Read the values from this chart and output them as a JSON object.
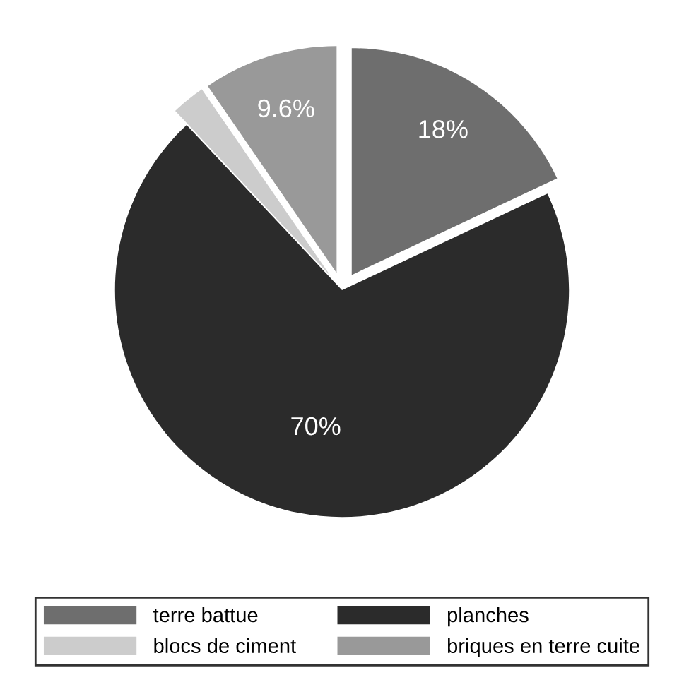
{
  "chart_data": {
    "type": "pie",
    "categories": [
      "terre battue",
      "planches",
      "blocs de ciment",
      "briques en terre cuite"
    ],
    "values": [
      18,
      70,
      2.4,
      9.6
    ],
    "colors": [
      "#6e6e6e",
      "#2b2b2b",
      "#cccccc",
      "#999999"
    ],
    "value_labels": [
      "18%",
      "70%",
      null,
      "9.6%"
    ],
    "legend": "bottom"
  }
}
